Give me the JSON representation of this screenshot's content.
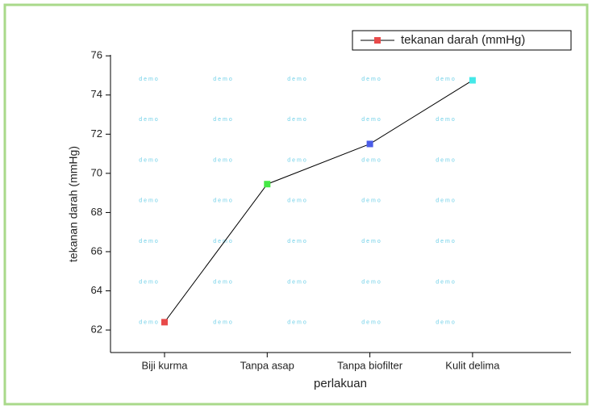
{
  "chart_data": {
    "type": "line",
    "x_label": "perlakuan",
    "y_label": "tekanan darah (mmHg)",
    "categories": [
      "Biji  kurma",
      "Tanpa asap",
      "Tanpa biofilter",
      "Kulit delima"
    ],
    "series": [
      {
        "name": "tekanan darah (mmHg)",
        "color": "#000000",
        "marker_colors": [
          "#e84a4a",
          "#45e845",
          "#4a5ce8",
          "#45e8e8"
        ],
        "values": [
          62.4,
          69.45,
          71.5,
          74.75
        ]
      }
    ],
    "ylim": [
      60.85,
      76.05
    ],
    "yticks": [
      62,
      64,
      66,
      68,
      70,
      72,
      74,
      76
    ],
    "legend": "upper right",
    "watermark": "demo"
  }
}
